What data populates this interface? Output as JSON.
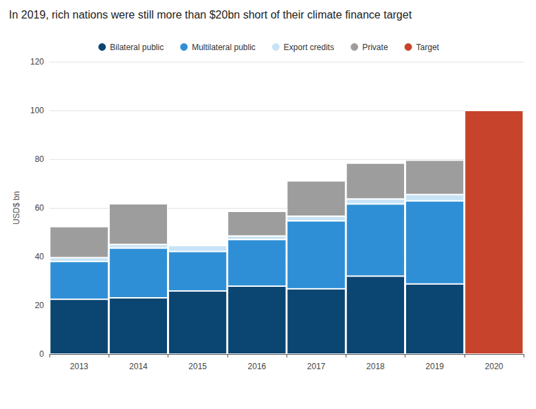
{
  "chart_data": {
    "type": "bar",
    "title": "In 2019, rich nations were still more than $20bn short of their climate finance target",
    "y_label": "USD$ bn",
    "categories": [
      "2013",
      "2014",
      "2015",
      "2016",
      "2017",
      "2018",
      "2019",
      "2020"
    ],
    "series": [
      {
        "name": "Bilateral public",
        "color": "#0b4572",
        "values": [
          22.5,
          23.1,
          25.9,
          27.9,
          26.8,
          32.0,
          28.8,
          null
        ]
      },
      {
        "name": "Multilateral public",
        "color": "#2f8fd6",
        "values": [
          15.5,
          20.4,
          16.2,
          19.1,
          27.9,
          29.6,
          34.1,
          null
        ]
      },
      {
        "name": "Export credits",
        "color": "#c8e3f6",
        "values": [
          1.6,
          1.5,
          2.5,
          1.5,
          1.9,
          2.1,
          2.6,
          null
        ]
      },
      {
        "name": "Private",
        "color": "#9d9d9d",
        "values": [
          12.7,
          16.7,
          null,
          10.1,
          14.5,
          14.7,
          14.1,
          null
        ]
      },
      {
        "name": "Target",
        "color": "#c8432b",
        "values": [
          null,
          null,
          null,
          null,
          null,
          null,
          null,
          100
        ]
      }
    ],
    "stacked": true,
    "ylim": [
      0,
      120
    ],
    "yticks": [
      0,
      20,
      40,
      60,
      80,
      100,
      120
    ],
    "grid": true,
    "legend": "top"
  }
}
